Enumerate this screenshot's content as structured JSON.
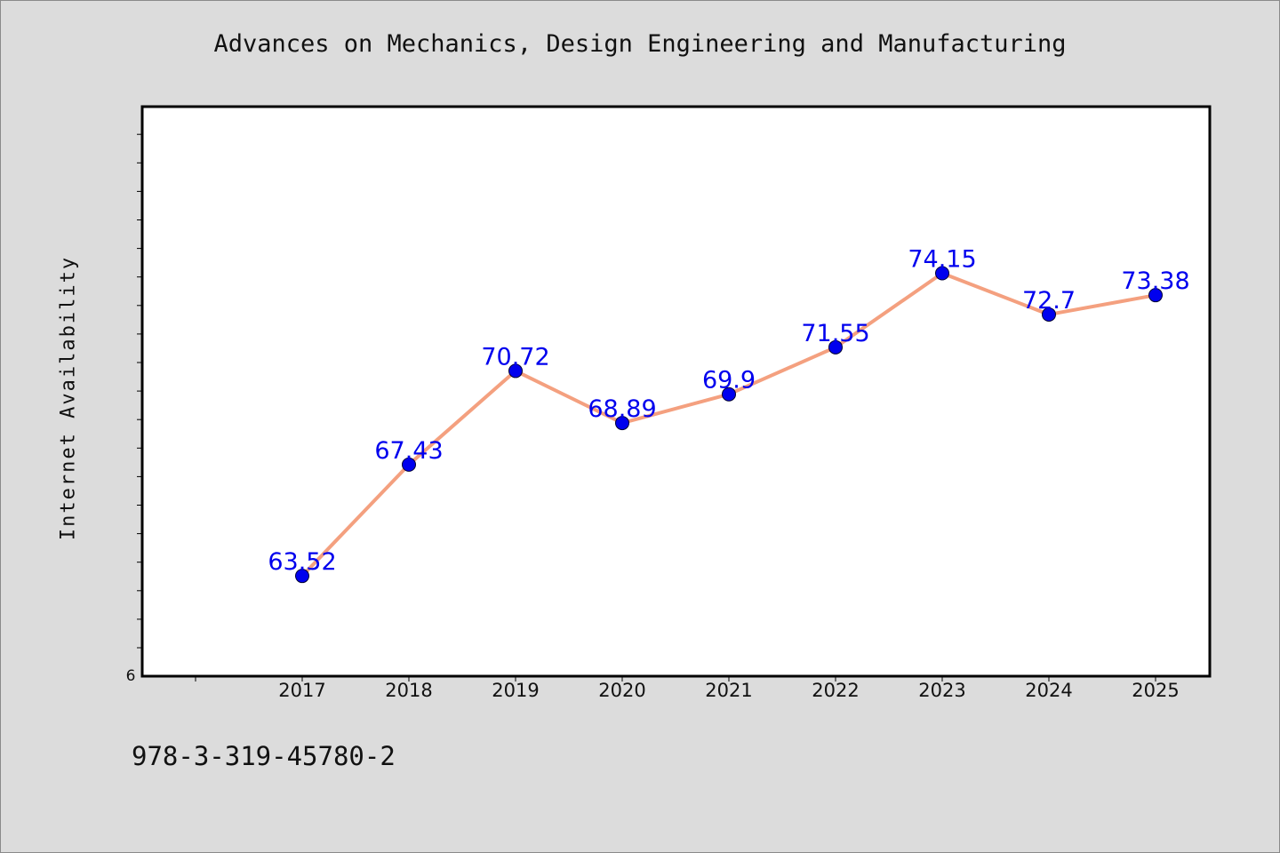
{
  "chart_data": {
    "type": "line",
    "title": "Advances on Mechanics, Design Engineering and Manufacturing",
    "xlabel": "",
    "ylabel": "Internet Availability",
    "categories": [
      "2017",
      "2018",
      "2019",
      "2020",
      "2021",
      "2022",
      "2023",
      "2024",
      "2025"
    ],
    "series": [
      {
        "values": [
          63.52,
          67.43,
          70.72,
          68.89,
          69.9,
          71.55,
          74.15,
          72.7,
          73.38
        ],
        "value_labels": [
          "63.52",
          "67.43",
          "70.72",
          "68.89",
          "69.9",
          "71.55",
          "74.15",
          "72.7",
          "73.38"
        ]
      }
    ],
    "y_tick_labels": [
      "6"
    ],
    "ylim": [
      60,
      80
    ],
    "grid": false,
    "line_color": "#f4a07f",
    "marker_color": "#0000ee",
    "label_color": "#0000ee"
  },
  "footer": {
    "isbn": "978-3-319-45780-2"
  }
}
